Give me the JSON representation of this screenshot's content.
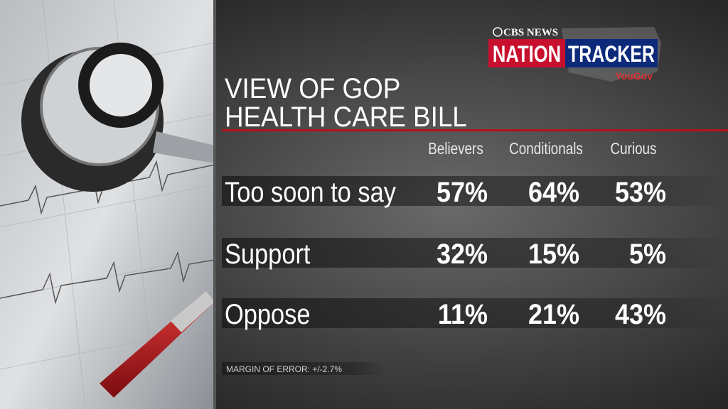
{
  "logo": {
    "network": "CBS NEWS",
    "brand_left": "NATION",
    "brand_right": "TRACKER",
    "partner": "YouGov"
  },
  "header": {
    "title_lines": [
      "VIEW OF GOP",
      "HEALTH CARE BILL"
    ]
  },
  "table": {
    "columns": [
      "Believers",
      "Conditionals",
      "Curious"
    ],
    "rows": [
      {
        "label": "Too soon to say",
        "cells": [
          "57%",
          "64%",
          "53%"
        ]
      },
      {
        "label": "Support",
        "cells": [
          "32%",
          "15%",
          "5%"
        ]
      },
      {
        "label": "Oppose",
        "cells": [
          "11%",
          "21%",
          "43%"
        ]
      }
    ]
  },
  "footer": {
    "note": "MARGIN OF ERROR: +/-2.7%"
  }
}
